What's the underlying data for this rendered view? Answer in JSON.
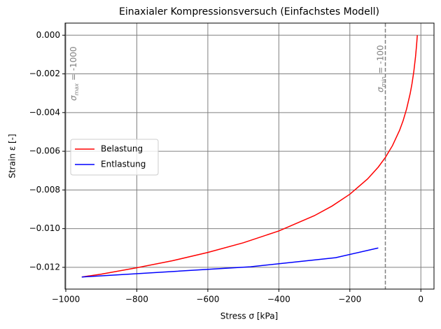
{
  "chart_data": {
    "type": "line",
    "title": "Einaxialer Kompressionsversuch (Einfachstes Modell)",
    "x_label": "Stress σ [kPa]",
    "y_label": "Strain ε [-]",
    "series": [
      {
        "name": "Belastung",
        "color": "#ff0000",
        "x": [
          -955,
          -900,
          -800,
          -700,
          -600,
          -500,
          -400,
          -300,
          -250,
          -200,
          -150,
          -120,
          -100,
          -80,
          -60,
          -50,
          -40,
          -30,
          -25,
          -20,
          -15,
          -12,
          -10
        ],
        "values": [
          -0.0125,
          -0.01235,
          -0.01202,
          -0.01166,
          -0.01123,
          -0.01073,
          -0.01012,
          -0.00933,
          -0.00883,
          -0.00822,
          -0.00743,
          -0.00682,
          -0.00632,
          -0.00571,
          -0.00492,
          -0.00442,
          -0.0038,
          -0.00301,
          -0.00251,
          -0.0019,
          -0.00111,
          -0.0005,
          0
        ]
      },
      {
        "name": "Entlastung",
        "color": "#0000ff",
        "x": [
          -955,
          -480,
          -240,
          -120
        ],
        "values": [
          -0.0125,
          -0.01197,
          -0.0115,
          -0.011
        ]
      }
    ],
    "vline": {
      "value": -100,
      "color": "#808080"
    },
    "annotations": [
      {
        "symbol": "σ",
        "subscript": "max",
        "text": " = -1000"
      },
      {
        "symbol": "σ",
        "subscript": "min",
        "text": " = -100"
      }
    ],
    "xlim": [
      -1002,
      37
    ],
    "ylim": [
      -0.013125,
      0.000625
    ],
    "xticks": [
      {
        "value": -1000,
        "label": "−1000"
      },
      {
        "value": -800,
        "label": "−800"
      },
      {
        "value": -600,
        "label": "−600"
      },
      {
        "value": -400,
        "label": "−400"
      },
      {
        "value": -200,
        "label": "−200"
      },
      0
    ],
    "yticks": [
      {
        "value": 0,
        "label": "0.000"
      },
      {
        "value": -0.002,
        "label": "−0.002"
      },
      {
        "value": -0.004,
        "label": "−0.004"
      },
      {
        "value": -0.006,
        "label": "−0.006"
      },
      {
        "value": -0.008,
        "label": "−0.008"
      },
      {
        "value": -0.01,
        "label": "−0.010"
      },
      {
        "value": -0.012,
        "label": "−0.012"
      }
    ],
    "grid": true,
    "grid_color": "#808080",
    "legend": "center left"
  }
}
